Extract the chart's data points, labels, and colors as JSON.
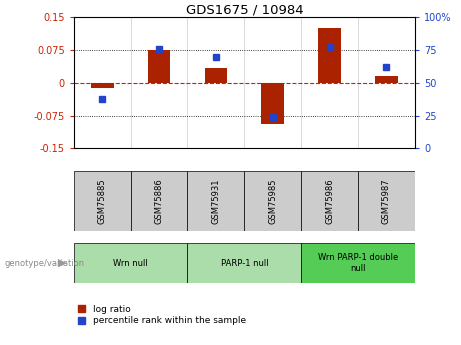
{
  "title": "GDS1675 / 10984",
  "samples": [
    "GSM75885",
    "GSM75886",
    "GSM75931",
    "GSM75985",
    "GSM75986",
    "GSM75987"
  ],
  "log_ratio": [
    -0.012,
    0.075,
    0.033,
    -0.095,
    0.125,
    0.015
  ],
  "percentile_rank": [
    38,
    76,
    70,
    24,
    77,
    62
  ],
  "ylim_left": [
    -0.15,
    0.15
  ],
  "ylim_right": [
    0,
    100
  ],
  "yticks_left": [
    -0.15,
    -0.075,
    0,
    0.075,
    0.15
  ],
  "yticks_right": [
    0,
    25,
    50,
    75,
    100
  ],
  "ytick_labels_left": [
    "-0.15",
    "-0.075",
    "0",
    "0.075",
    "0.15"
  ],
  "ytick_labels_right": [
    "0",
    "25",
    "50",
    "75",
    "100%"
  ],
  "bar_color_red": "#aa2200",
  "bar_color_blue": "#2244cc",
  "bg_sample": "#cccccc",
  "bg_group_light": "#aaddaa",
  "bg_group_dark": "#55cc55",
  "legend_red_label": "log ratio",
  "legend_blue_label": "percentile rank within the sample",
  "genotype_label": "genotype/variation",
  "group_info": [
    [
      0,
      1,
      "Wrn null",
      "#aaddaa"
    ],
    [
      2,
      3,
      "PARP-1 null",
      "#aaddaa"
    ],
    [
      4,
      5,
      "Wrn PARP-1 double\nnull",
      "#55cc55"
    ]
  ]
}
